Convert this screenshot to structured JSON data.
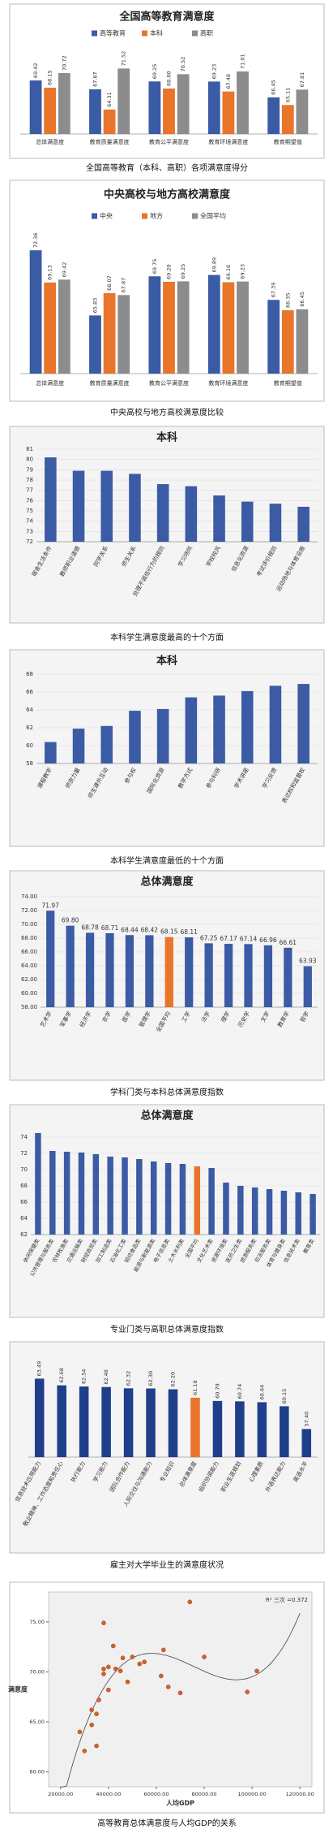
{
  "chart_data": [
    {
      "type": "bar",
      "title": "全国高等教育满意度",
      "caption": "全国高等教育（本科、高职）各项满意度得分",
      "legend": "top",
      "categories": [
        "总体满意度",
        "教育质量满意度",
        "教育公平满意度",
        "教育环境满意度",
        "教育期望值"
      ],
      "ylim": [
        60,
        74
      ],
      "series": [
        {
          "name": "高等教育",
          "color": "#3b5ba5",
          "values": [
            69.42,
            67.87,
            69.25,
            69.23,
            66.45
          ],
          "value_labels": [
            "69.42",
            "67.87",
            "69.25",
            "69.23",
            "66.45"
          ]
        },
        {
          "name": "本科",
          "color": "#e8752a",
          "values": [
            68.15,
            64.31,
            68,
            67.48,
            65.11
          ],
          "value_labels": [
            "68.15",
            "64.31",
            "68.00",
            "67.48",
            "65.11"
          ]
        },
        {
          "name": "高职",
          "color": "#8c8c8c",
          "values": [
            70.72,
            71.52,
            70.52,
            71.01,
            67.81
          ],
          "value_labels": [
            "70.72",
            "71.52",
            "70.52",
            "71.01",
            "67.81"
          ]
        }
      ]
    },
    {
      "type": "bar",
      "title": "中央高校与地方高校满意度",
      "caption": "中央高校与地方高校满意度比较",
      "legend": "top",
      "categories": [
        "总体满意度",
        "教育质量满意度",
        "教育公平满意度",
        "教育环境满意度",
        "教育期望值"
      ],
      "ylim": [
        60,
        74
      ],
      "series": [
        {
          "name": "中央",
          "color": "#3b5ba5",
          "values": [
            72.36,
            65.83,
            69.75,
            69.89,
            67.39
          ],
          "value_labels": [
            "72.36",
            "65.83",
            "69.75",
            "69.89",
            "67.39"
          ]
        },
        {
          "name": "地方",
          "color": "#e8752a",
          "values": [
            69.13,
            68.07,
            69.2,
            69.16,
            66.35
          ],
          "value_labels": [
            "69.13",
            "68.07",
            "69.20",
            "69.16",
            "66.35"
          ]
        },
        {
          "name": "全国平均",
          "color": "#8c8c8c",
          "values": [
            69.42,
            67.87,
            69.25,
            69.23,
            66.45
          ],
          "value_labels": [
            "69.42",
            "67.87",
            "69.25",
            "69.23",
            "66.45"
          ]
        }
      ]
    },
    {
      "type": "bar",
      "title": "本科",
      "caption": "本科学生满意度最高的十个方面",
      "color": "#3b5ba5",
      "categories": [
        "宿舍生活条件",
        "教师职业道德",
        "同学关系",
        "师生关系",
        "处理不诚信行为的规则",
        "学习场所",
        "学校校风",
        "信息化资源",
        "考试评价规则",
        "运动场地与体育设施"
      ],
      "values": [
        80.2,
        78.9,
        78.9,
        78.6,
        77.6,
        77.4,
        76.5,
        75.9,
        75.7,
        75.4
      ],
      "ylim": [
        72,
        81
      ],
      "yticks": [
        72,
        73,
        74,
        75,
        76,
        77,
        78,
        79,
        80,
        81
      ],
      "grid": true
    },
    {
      "type": "bar",
      "title": "本科",
      "caption": "本科学生满意度最低的十个方面",
      "color": "#3b5ba5",
      "categories": [
        "课程教学",
        "师资力量",
        "师生课外互动",
        "参与权",
        "国际化资源",
        "教学方式",
        "参与科研",
        "学术讲座",
        "学习反馈",
        "表达权和监督权"
      ],
      "values": [
        60.4,
        61.9,
        62.2,
        63.9,
        64.1,
        65.4,
        65.6,
        66.1,
        66.7,
        66.9
      ],
      "ylim": [
        58,
        68
      ],
      "yticks": [
        58,
        60,
        62,
        64,
        66,
        68
      ],
      "grid": true
    },
    {
      "type": "bar",
      "title": "总体满意度",
      "caption": "学科门类与本科总体满意度指数",
      "categories": [
        "艺术学",
        "军事学",
        "经济学",
        "农学",
        "医学",
        "管理学",
        "全国平均",
        "工学",
        "法学",
        "理学",
        "历史学",
        "文学",
        "教育学",
        "哲学"
      ],
      "values": [
        71.97,
        69.8,
        68.78,
        68.71,
        68.44,
        68.42,
        68.15,
        68.11,
        67.25,
        67.17,
        67.14,
        66.96,
        66.61,
        63.93
      ],
      "value_labels": [
        "71.97",
        "69.80",
        "68.78",
        "68.71",
        "68.44",
        "68.42",
        "68.15",
        "68.11",
        "67.25",
        "67.17",
        "67.14",
        "66.96",
        "66.61",
        "63.93"
      ],
      "colors": [
        "#3b5ba5",
        "#3b5ba5",
        "#3b5ba5",
        "#3b5ba5",
        "#3b5ba5",
        "#3b5ba5",
        "#e8752a",
        "#3b5ba5",
        "#3b5ba5",
        "#3b5ba5",
        "#3b5ba5",
        "#3b5ba5",
        "#3b5ba5",
        "#3b5ba5"
      ],
      "ylim": [
        58,
        74
      ],
      "yticks": [
        {
          "value": 58,
          "label": "58.00"
        },
        {
          "value": 60,
          "label": "60.00"
        },
        {
          "value": 62,
          "label": "62.00"
        },
        {
          "value": 64,
          "label": "64.00"
        },
        {
          "value": 66,
          "label": "66.00"
        },
        {
          "value": 68,
          "label": "68.00"
        },
        {
          "value": 70,
          "label": "70.00"
        },
        {
          "value": 72,
          "label": "72.00"
        },
        {
          "value": 74,
          "label": "74.00"
        }
      ],
      "grid": true
    },
    {
      "type": "bar",
      "title": "总体满意度",
      "caption": "专业门类与高职总体满意度指数",
      "categories": [
        "休闲保健类",
        "公共管理与服务类",
        "农林牧渔类",
        "交通运输类",
        "财经商贸类",
        "加工制造类",
        "石油化工类",
        "轻纺食品类",
        "能源与新能源类",
        "电子信息类",
        "土木水利类",
        "全国平均",
        "文化艺术类",
        "资源环境类",
        "医药卫生类",
        "旅游服务类",
        "司法服务类",
        "体育与健身类",
        "信息技术类",
        "教育类"
      ],
      "values": [
        74.5,
        72.3,
        72.2,
        72.1,
        71.9,
        71.6,
        71.5,
        71.3,
        71,
        70.8,
        70.7,
        70.4,
        70.2,
        68.4,
        68,
        67.8,
        67.6,
        67.4,
        67.2,
        67
      ],
      "colors": [
        "#3b5ba5",
        "#3b5ba5",
        "#3b5ba5",
        "#3b5ba5",
        "#3b5ba5",
        "#3b5ba5",
        "#3b5ba5",
        "#3b5ba5",
        "#3b5ba5",
        "#3b5ba5",
        "#3b5ba5",
        "#e8752a",
        "#3b5ba5",
        "#3b5ba5",
        "#3b5ba5",
        "#3b5ba5",
        "#3b5ba5",
        "#3b5ba5",
        "#3b5ba5",
        "#3b5ba5"
      ],
      "ylim": [
        62,
        75
      ],
      "yticks": [
        62,
        64,
        66,
        68,
        70,
        72,
        74
      ],
      "grid": true
    },
    {
      "type": "bar",
      "caption": "雇主对大学毕业生的满意度状况",
      "categories": [
        "信息技术应用能力",
        "敬业精神、工作态度和责任心",
        "执行能力",
        "学习能力",
        "团队合作能力",
        "人际交往与沟通能力",
        "专业知识",
        "总体满意度",
        "组织协调能力",
        "职业生涯规划",
        "心理素质",
        "外语表达能力",
        "英语水平"
      ],
      "values": [
        63.49,
        62.68,
        62.54,
        62.48,
        62.32,
        62.3,
        62.2,
        61.18,
        60.79,
        60.74,
        60.64,
        60.15,
        57.4
      ],
      "value_labels": [
        "63.49",
        "62.68",
        "62.54",
        "62.48",
        "62.32",
        "62.30",
        "62.20",
        "61.18",
        "60.79",
        "60.74",
        "60.64",
        "60.15",
        "57.40"
      ],
      "colors": [
        "#1f3f8a",
        "#1f3f8a",
        "#1f3f8a",
        "#1f3f8a",
        "#1f3f8a",
        "#1f3f8a",
        "#1f3f8a",
        "#e8752a",
        "#1f3f8a",
        "#1f3f8a",
        "#1f3f8a",
        "#1f3f8a",
        "#1f3f8a"
      ],
      "ylim": [
        54,
        65
      ]
    },
    {
      "type": "scatter",
      "caption": "高等教育总体满意度与人均GDP的关系",
      "xlabel": "人均GDP",
      "ylabel": "满意度",
      "annotation": "R² 三次 =0.372",
      "color": "#d4602a",
      "x": [
        28000,
        30000,
        33000,
        33000,
        35000,
        35000,
        36000,
        38000,
        38000,
        38000,
        40000,
        40000,
        42000,
        43000,
        45000,
        46000,
        48000,
        50000,
        53000,
        55000,
        62000,
        63000,
        65000,
        70000,
        74000,
        80000,
        98000,
        102000
      ],
      "values": [
        64.0,
        62.1,
        64.7,
        66.2,
        65.8,
        62.6,
        67.2,
        69.8,
        74.9,
        70.3,
        68.2,
        70.5,
        72.6,
        70.3,
        70.1,
        71.4,
        69.0,
        71.5,
        70.8,
        71.0,
        69.6,
        72.2,
        68.5,
        67.9,
        77.0,
        71.5,
        68.0,
        70.1
      ],
      "xlim": [
        15000,
        125000
      ],
      "xticks": [
        {
          "value": 20000,
          "label": "20000.00"
        },
        {
          "value": 40000,
          "label": "40000.00"
        },
        {
          "value": 60000,
          "label": "60000.00"
        },
        {
          "value": 80000,
          "label": "80000.00"
        },
        {
          "value": 100000,
          "label": "100000.00"
        },
        {
          "value": 120000,
          "label": "120000.00"
        }
      ],
      "ylim": [
        58.5,
        78
      ],
      "yticks": [
        {
          "value": 60,
          "label": "60.00"
        },
        {
          "value": 65,
          "label": "65.00"
        },
        {
          "value": 70,
          "label": "70.00"
        },
        {
          "value": 75,
          "label": "75.00"
        }
      ]
    }
  ]
}
